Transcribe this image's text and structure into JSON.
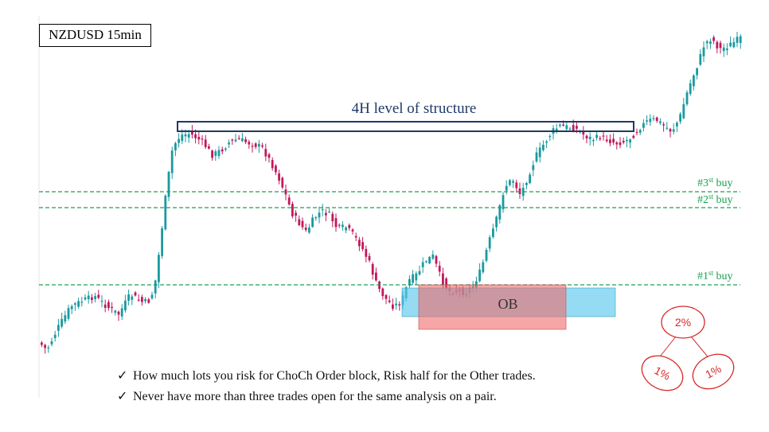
{
  "chart_data": {
    "type": "candlestick",
    "title": "NZDUSD 15min",
    "structure_zone": {
      "label": "4H level of structure"
    },
    "order_block": {
      "label": "OB"
    },
    "buy_levels": [
      {
        "label": "#3",
        "sup": "st",
        "suffix": " buy"
      },
      {
        "label": "#2",
        "sup": "st",
        "suffix": " buy"
      },
      {
        "label": "#1",
        "sup": "st",
        "suffix": " buy"
      }
    ],
    "risk_tree": {
      "root": "2%",
      "children": [
        "1%",
        "1%"
      ]
    },
    "colors": {
      "bull": "#1a9aa0",
      "bear": "#c2185b",
      "buy_line": "#1aa04f",
      "structure": "#1e3a66",
      "ob_red": "#f08080",
      "ob_blue": "#5bc8ec",
      "risk": "#d62a2a"
    }
  },
  "notes": [
    "How much lots you risk for ChoCh Order block, Risk half for the Other trades.",
    "Never have more than three trades open for the same analysis on a pair."
  ],
  "check_glyph": "✓"
}
